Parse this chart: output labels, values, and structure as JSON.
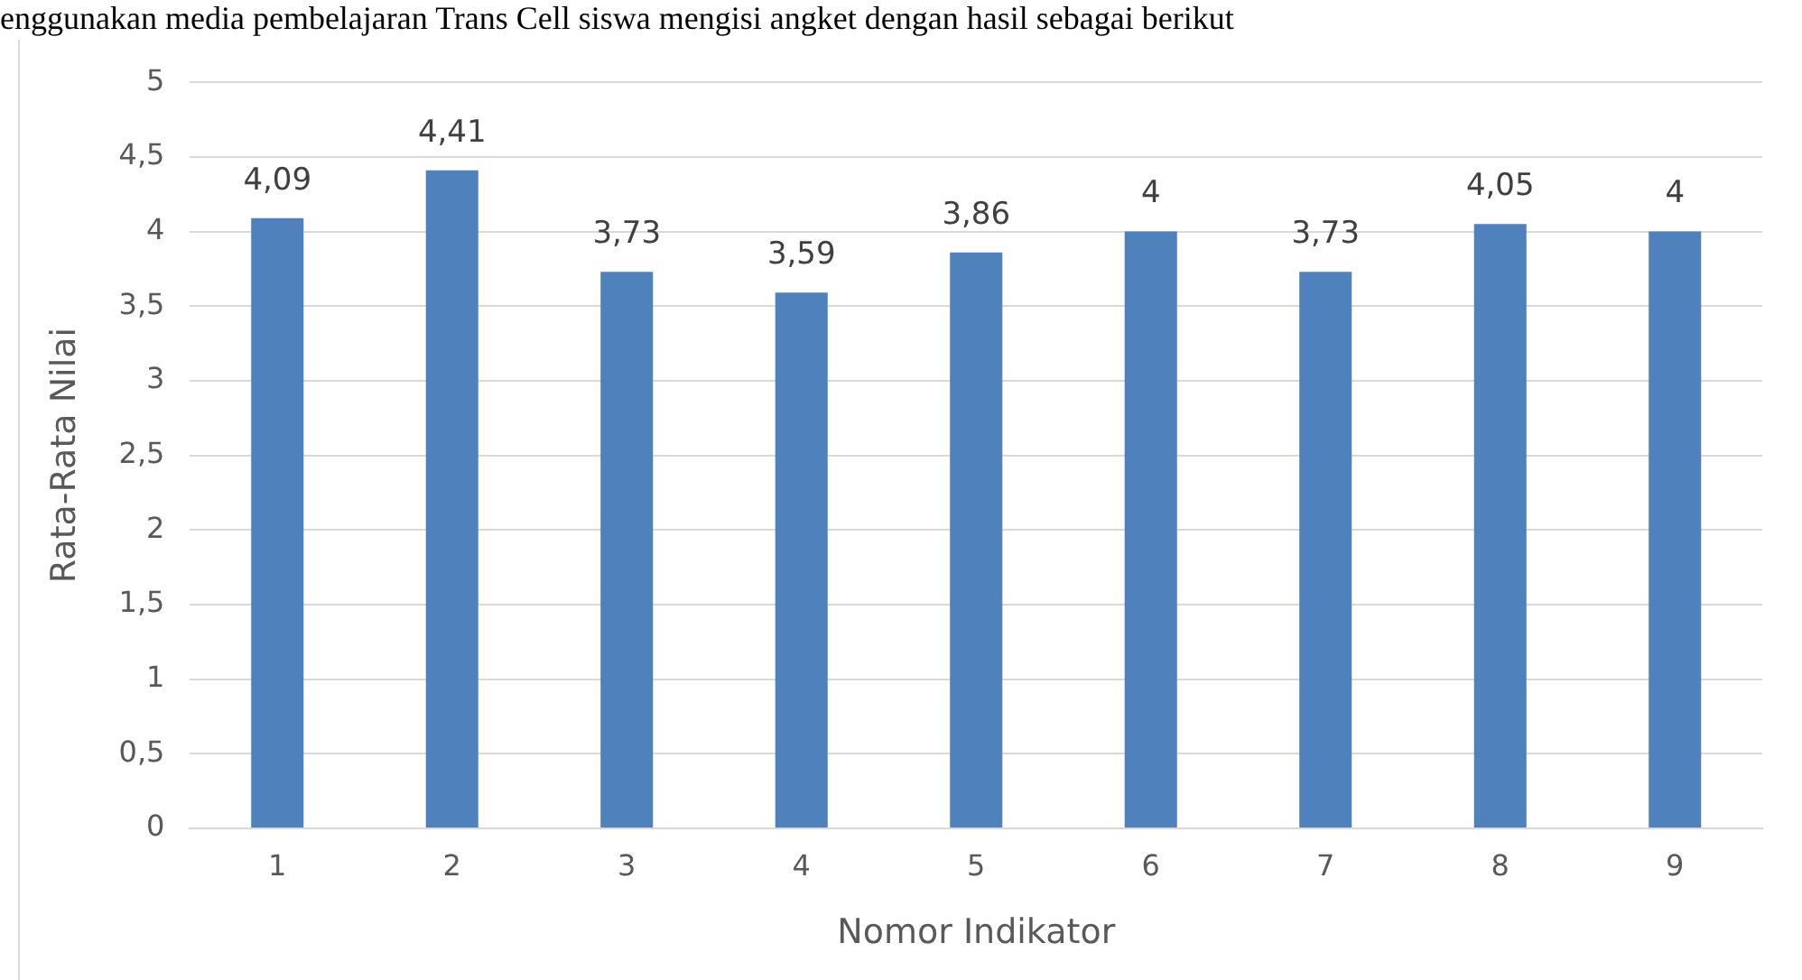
{
  "chart_data": {
    "type": "bar",
    "annotations": [
      "enggunakan media pembelajaran Trans Cell siswa mengisi angket dengan hasil sebagai berikut"
    ],
    "xlabel": "Nomor Indikator",
    "ylabel": "Rata-Rata Nilai",
    "categories": [
      "1",
      "2",
      "3",
      "4",
      "5",
      "6",
      "7",
      "8",
      "9"
    ],
    "values": [
      4.09,
      4.41,
      3.73,
      3.59,
      3.86,
      4,
      3.73,
      4.05,
      4
    ],
    "value_labels": [
      "4,09",
      "4,41",
      "3,73",
      "3,59",
      "3,86",
      "4",
      "3,73",
      "4,05",
      "4"
    ],
    "color": "#4f81bd",
    "ylim": [
      0,
      5
    ],
    "yticks": [
      0,
      {
        "value": 0.5,
        "label": "0,5"
      },
      1,
      {
        "value": 1.5,
        "label": "1,5"
      },
      2,
      {
        "value": 2.5,
        "label": "2,5"
      },
      3,
      {
        "value": 3.5,
        "label": "3,5"
      },
      4,
      {
        "value": 4.5,
        "label": "4,5"
      },
      5
    ],
    "grid": "y",
    "legend": false
  }
}
